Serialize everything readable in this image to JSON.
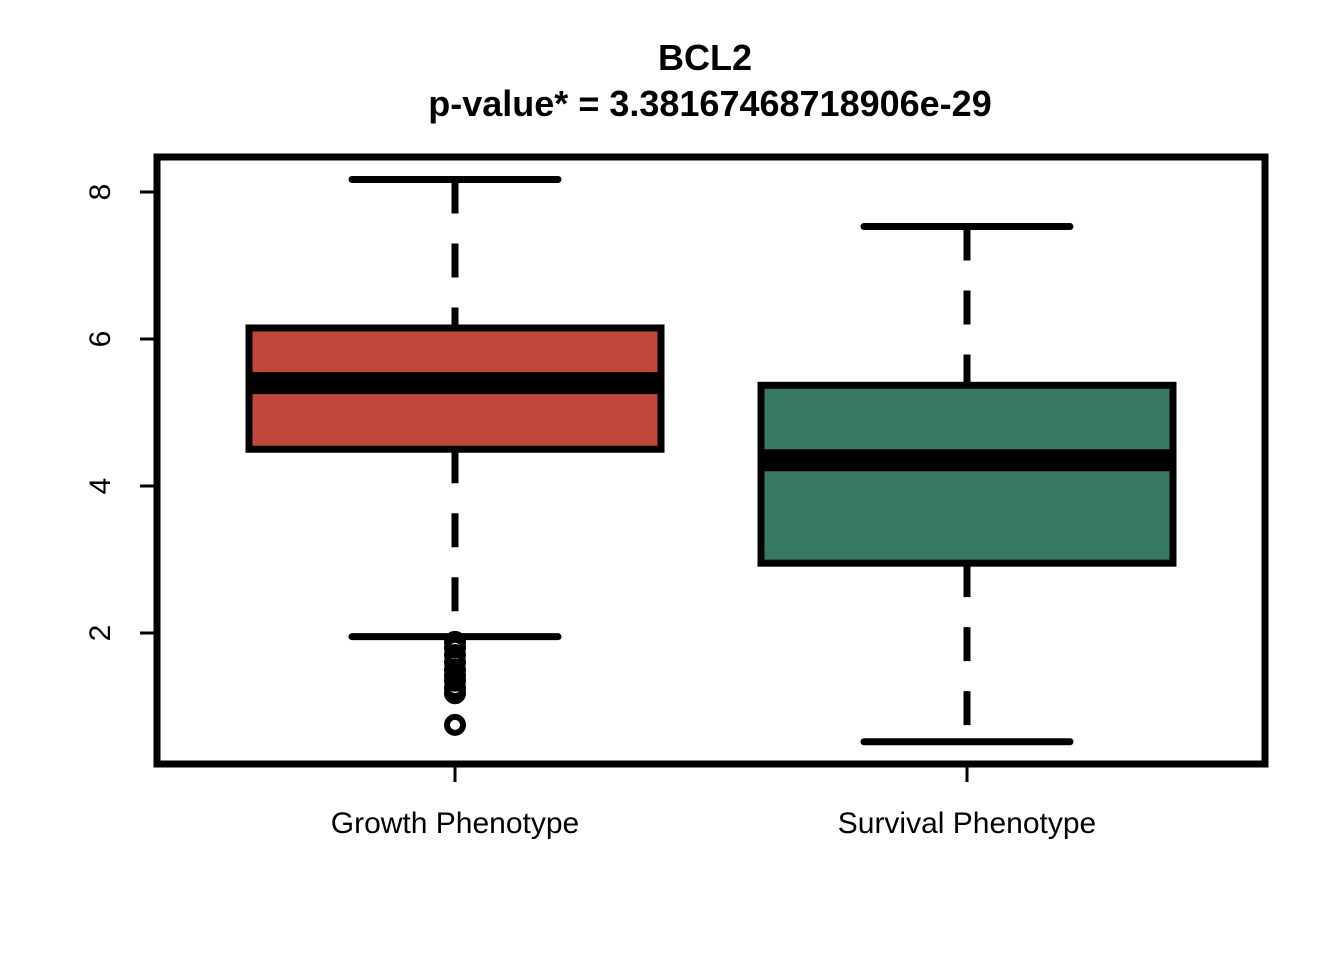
{
  "chart_data": {
    "type": "box",
    "title": "BCL2",
    "subtitle": "p-value* = 3.38167468718906e-29",
    "xlabel": "",
    "ylabel": "",
    "ylim": [
      0.2,
      8.5
    ],
    "yticks": [
      2,
      4,
      6,
      8
    ],
    "yticks_text": [
      "2",
      "4",
      "6",
      "8"
    ],
    "grid": false,
    "categories": [
      "Growth Phenotype",
      "Survival Phenotype"
    ],
    "boxes": [
      {
        "category": "Growth Phenotype",
        "color": "#c0473a",
        "whisker_low": 1.95,
        "q1": 4.5,
        "median": 5.4,
        "q3": 6.15,
        "whisker_high": 8.17,
        "outliers": [
          1.88,
          1.8,
          1.7,
          1.6,
          1.5,
          1.42,
          1.35,
          1.25,
          1.18,
          0.75
        ]
      },
      {
        "category": "Survival Phenotype",
        "color": "#387a61",
        "whisker_low": 0.52,
        "q1": 2.95,
        "median": 4.35,
        "q3": 5.37,
        "whisker_high": 7.53,
        "outliers": []
      }
    ]
  }
}
